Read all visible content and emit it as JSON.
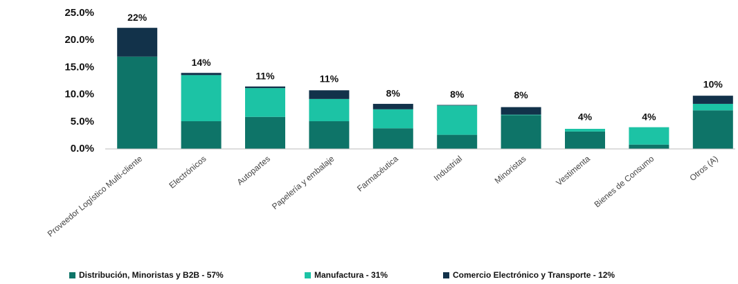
{
  "chart_data": {
    "type": "stacked_bar",
    "categories": [
      "Proveedor Logístico Multi-cliente",
      "Electrónicos",
      "Autopartes",
      "Papelería y embalaje",
      "Farmacéutica",
      "Industrial",
      "Minoristas",
      "Vestimenta",
      "Bienes de Consumo",
      "Otros (A)"
    ],
    "series": [
      {
        "name": "Distribución, Minoristas y B2B - 57%",
        "color": "#0e7468",
        "values": [
          17.0,
          5.1,
          5.9,
          5.1,
          3.8,
          2.6,
          6.2,
          3.2,
          0.8,
          7.1
        ]
      },
      {
        "name": "Manufactura - 31%",
        "color": "#1cc3a5",
        "values": [
          0,
          8.5,
          5.3,
          4.1,
          3.5,
          5.4,
          0.1,
          0.5,
          3.2,
          1.2
        ]
      },
      {
        "name": "Comercio Electrónico y Transporte - 12%",
        "color": "#12324a",
        "values": [
          5.3,
          0.4,
          0.3,
          1.6,
          1.0,
          0.1,
          1.4,
          0,
          0,
          1.5
        ]
      }
    ],
    "totals": {
      "values": [
        22,
        14,
        11,
        11,
        8,
        8,
        8,
        4,
        4,
        10
      ],
      "value_labels": [
        "22%",
        "14%",
        "11%",
        "11%",
        "8%",
        "8%",
        "8%",
        "4%",
        "4%",
        "10%"
      ]
    },
    "ylim": [
      0,
      25
    ],
    "yticks": [
      {
        "value": 0,
        "label": "0.0%"
      },
      {
        "value": 5,
        "label": "5.0%"
      },
      {
        "value": 10,
        "label": "10.0%"
      },
      {
        "value": 15,
        "label": "15.0%"
      },
      {
        "value": 20,
        "label": "20.0%"
      },
      {
        "value": 25,
        "label": "25.0%"
      }
    ],
    "grid": false,
    "legend": "bottom"
  }
}
